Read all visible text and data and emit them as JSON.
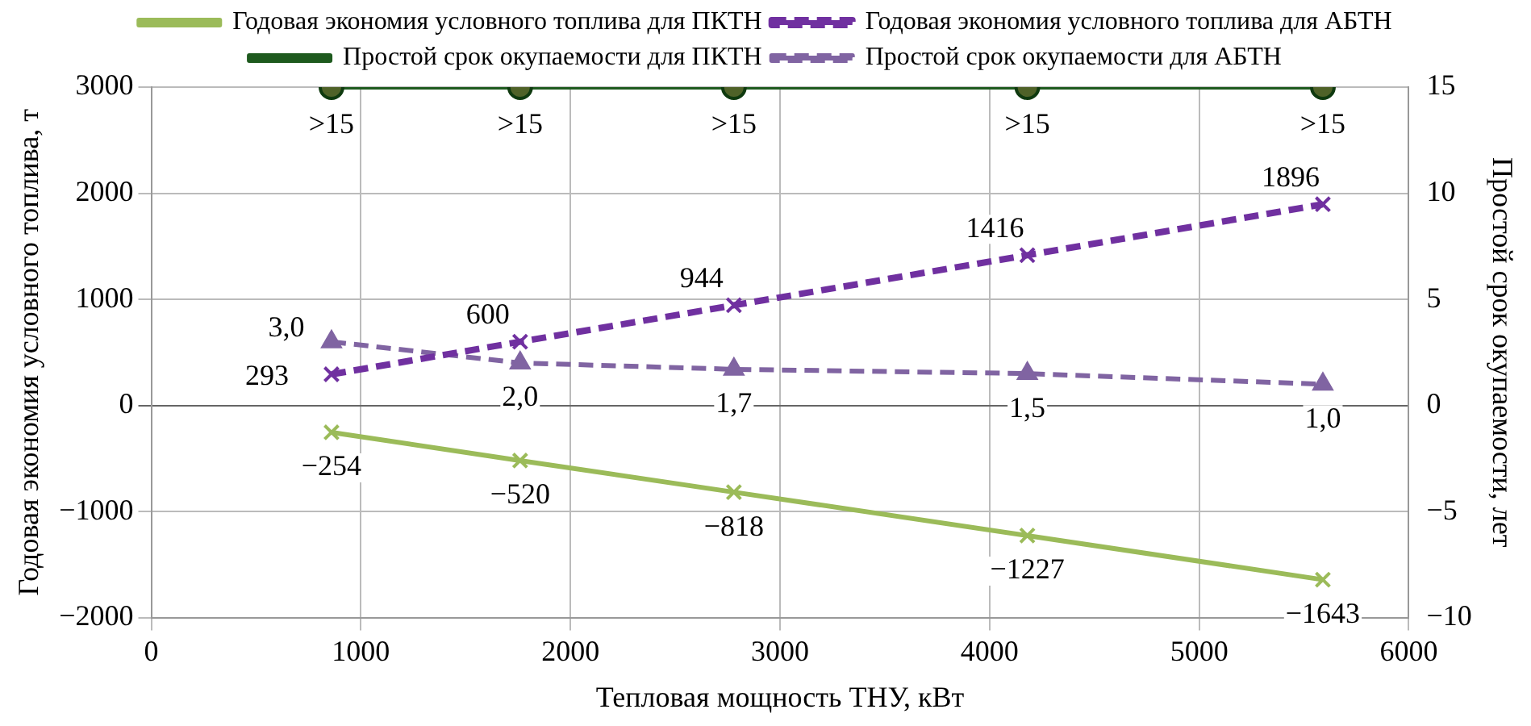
{
  "chart_data": {
    "type": "line",
    "xlabel": "Тепловая мощность ТНУ, кВт",
    "ylabel": "Годовая экономия условного топлива, т",
    "y2label": "Простой срок окупаемости, лет",
    "x": [
      860,
      1760,
      2780,
      4180,
      5590
    ],
    "xlim": [
      0,
      6000
    ],
    "xticks": [
      0,
      1000,
      2000,
      3000,
      4000,
      5000,
      6000
    ],
    "ylim": [
      -2000,
      3000
    ],
    "yticks": [
      {
        "value": -2000,
        "label": "−2000"
      },
      {
        "value": -1000,
        "label": "−1000"
      },
      0,
      1000,
      2000,
      3000
    ],
    "y2lim": [
      -10,
      15
    ],
    "y2ticks": [
      {
        "value": -10,
        "label": "−10"
      },
      {
        "value": -5,
        "label": "−5"
      },
      0,
      5,
      10,
      15
    ],
    "grid": true,
    "legend": "top",
    "series": [
      {
        "name": "Годовая экономия условного топлива для ПКТН",
        "color": "#9bbb59",
        "marker": "cross",
        "line_style": "solid",
        "values": [
          -254,
          -520,
          -818,
          -1227,
          -1643
        ],
        "value_labels": [
          "−254",
          "−520",
          "−818",
          "−1227",
          "−1643"
        ]
      },
      {
        "name": "Годовая экономия условного топлива для АБТН",
        "color": "#7030a0",
        "marker": "cross",
        "line_style": "dashed",
        "values": [
          293,
          600,
          944,
          1416,
          1896
        ],
        "value_labels": [
          "293",
          "600",
          "944",
          "1416",
          "1896"
        ]
      },
      {
        "name": "Простой срок окупаемости для ПКТН",
        "color": "#1e5a1e",
        "marker": "circle",
        "line_style": "solid",
        "axis": "y2",
        "values": [
          15,
          15,
          15,
          15,
          15
        ],
        "value_labels": [
          ">15",
          ">15",
          ">15",
          ">15",
          ">15"
        ]
      },
      {
        "name": "Простой срок окупаемости для АБТН",
        "color": "#8064a2",
        "marker": "triangle",
        "line_style": "dashed",
        "axis": "y2",
        "values": [
          3.0,
          2.0,
          1.7,
          1.5,
          1.0
        ],
        "value_labels": [
          "3,0",
          "2,0",
          "1,7",
          "1,5",
          "1,0"
        ]
      }
    ]
  }
}
